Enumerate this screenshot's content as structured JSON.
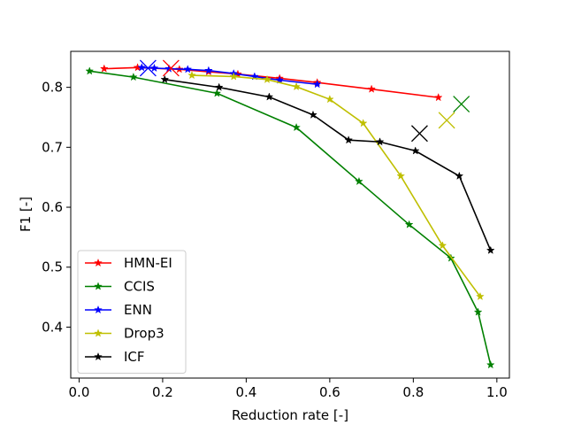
{
  "chart_data": {
    "type": "line",
    "title": "",
    "xlabel": "Reduction rate [-]",
    "ylabel": "F1 [-]",
    "xlim": [
      -0.02,
      1.03
    ],
    "ylim": [
      0.315,
      0.86
    ],
    "xticks": [
      0.0,
      0.2,
      0.4,
      0.6,
      0.8,
      1.0
    ],
    "xtick_labels": [
      "0.0",
      "0.2",
      "0.4",
      "0.6",
      "0.8",
      "1.0"
    ],
    "yticks": [
      0.4,
      0.5,
      0.6,
      0.7,
      0.8
    ],
    "ytick_labels": [
      "0.4",
      "0.5",
      "0.6",
      "0.7",
      "0.8"
    ],
    "grid": false,
    "legend_position": "lower-left",
    "series": [
      {
        "name": "HMN-EI",
        "color": "#ff0000",
        "marker": "star",
        "x": [
          0.06,
          0.14,
          0.24,
          0.31,
          0.38,
          0.48,
          0.57,
          0.7,
          0.86
        ],
        "y": [
          0.831,
          0.833,
          0.83,
          0.826,
          0.822,
          0.815,
          0.808,
          0.797,
          0.783
        ],
        "summary_point": {
          "x": 0.22,
          "y": 0.832
        }
      },
      {
        "name": "CCIS",
        "color": "#008000",
        "marker": "star",
        "x": [
          0.025,
          0.13,
          0.33,
          0.52,
          0.67,
          0.79,
          0.89,
          0.955,
          0.985
        ],
        "y": [
          0.827,
          0.817,
          0.79,
          0.733,
          0.643,
          0.571,
          0.515,
          0.425,
          0.337
        ],
        "summary_point": {
          "x": 0.915,
          "y": 0.772
        }
      },
      {
        "name": "ENN",
        "color": "#0000ff",
        "marker": "star",
        "x": [
          0.15,
          0.18,
          0.215,
          0.26,
          0.31,
          0.37,
          0.42,
          0.48,
          0.57
        ],
        "y": [
          0.833,
          0.832,
          0.831,
          0.83,
          0.828,
          0.823,
          0.818,
          0.812,
          0.805
        ],
        "summary_point": {
          "x": 0.165,
          "y": 0.832
        }
      },
      {
        "name": "Drop3",
        "color": "#bfbf00",
        "marker": "star",
        "x": [
          0.27,
          0.37,
          0.45,
          0.52,
          0.6,
          0.68,
          0.77,
          0.87,
          0.96
        ],
        "y": [
          0.82,
          0.818,
          0.813,
          0.801,
          0.78,
          0.74,
          0.652,
          0.536,
          0.451
        ],
        "summary_point": {
          "x": 0.88,
          "y": 0.745
        }
      },
      {
        "name": "ICF",
        "color": "#000000",
        "marker": "star",
        "x": [
          0.205,
          0.335,
          0.455,
          0.56,
          0.645,
          0.72,
          0.805,
          0.91,
          0.985
        ],
        "y": [
          0.813,
          0.8,
          0.784,
          0.754,
          0.712,
          0.709,
          0.694,
          0.652,
          0.528
        ],
        "summary_point": {
          "x": 0.815,
          "y": 0.723
        }
      }
    ]
  }
}
